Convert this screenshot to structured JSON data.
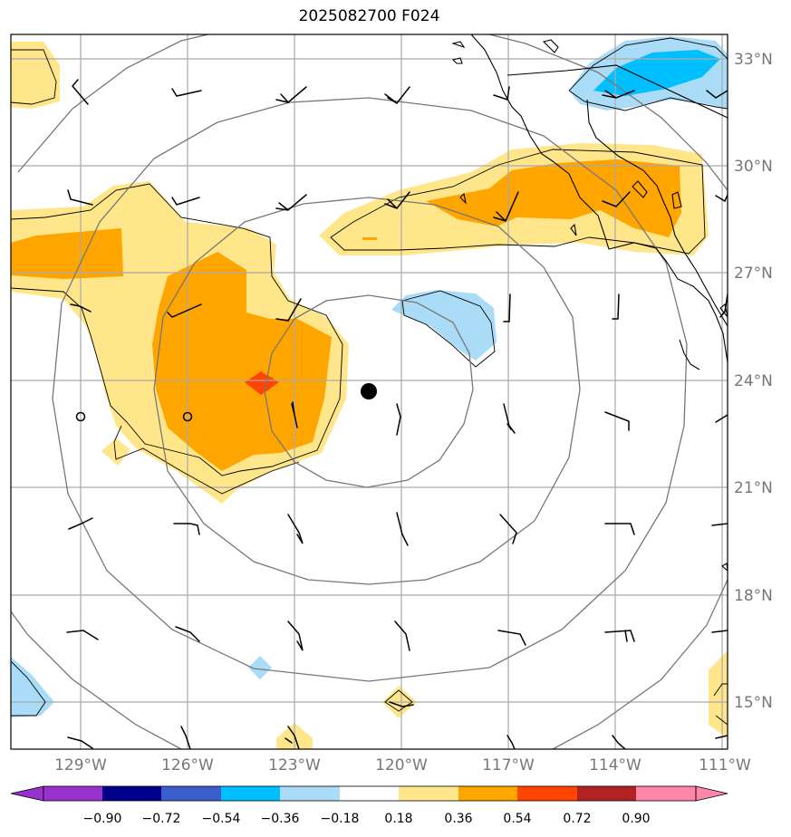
{
  "title": "2025082700 F024",
  "map": {
    "lat_labels": [
      "33°N",
      "30°N",
      "27°N",
      "24°N",
      "21°N",
      "18°N",
      "15°N"
    ],
    "lon_labels": [
      "129°W",
      "126°W",
      "123°W",
      "120°W",
      "117°W",
      "114°W",
      "111°W"
    ],
    "center_marker": "storm-center",
    "colors": {
      "gridline": "#aaaaaa",
      "range_ring": "#777777",
      "coast": "#000000",
      "fill_018_036": "#ffe68a",
      "fill_036_054": "#ffa500",
      "fill_054_072": "#ff4500",
      "fill_neg018_neg036": "#aadcf8",
      "fill_neg036_neg054": "#00bfff"
    }
  },
  "colorbar": {
    "ticks": [
      "−0.90",
      "−0.72",
      "−0.54",
      "−0.36",
      "−0.18",
      "0.18",
      "0.36",
      "0.54",
      "0.72",
      "0.90"
    ],
    "colors": [
      "#9932cc",
      "#00008b",
      "#3a5fcd",
      "#00bfff",
      "#aadcf8",
      "#ffffff",
      "#ffe68a",
      "#ffa500",
      "#ff4500",
      "#b22222",
      "#ff88aa",
      "#ff88cc"
    ]
  }
}
